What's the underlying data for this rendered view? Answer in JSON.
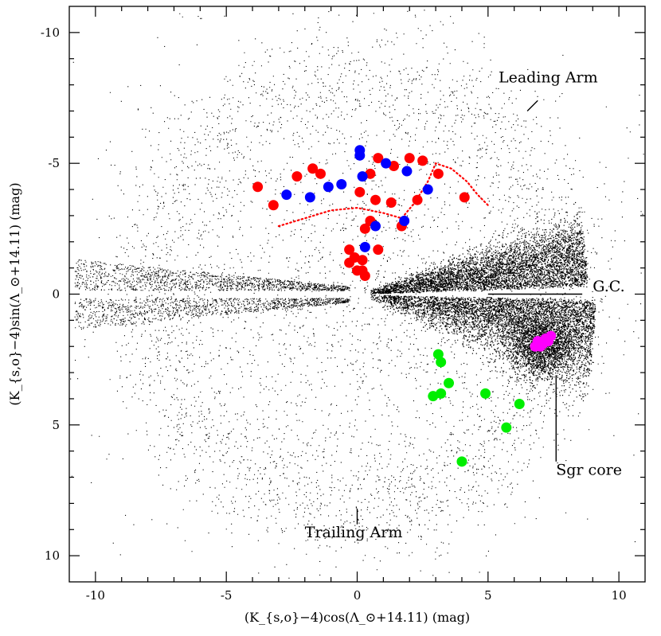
{
  "chart_data": {
    "type": "scatter",
    "title": "",
    "xlabel": "(K_{s,o}−4)cos(Λ_⊙+14.11) (mag)",
    "ylabel": "(K_{s,o}−4)sin(Λ_⊙+14.11) (mag)",
    "xlim": [
      -11,
      11
    ],
    "ylim": [
      11,
      -11
    ],
    "y_axis_inverted": true,
    "x_ticks": [
      -10,
      -5,
      0,
      5,
      10
    ],
    "y_ticks": [
      -10,
      -5,
      0,
      5,
      10
    ],
    "grid": false,
    "legend": "none",
    "annotations": [
      {
        "text": "Leading Arm",
        "x": 5.4,
        "y": -8.1
      },
      {
        "text": "G.C.",
        "x": 9.0,
        "y": -0.1
      },
      {
        "text": "Sgr core",
        "x": 7.6,
        "y": 6.9
      },
      {
        "text": "Trailing Arm",
        "x": -2.0,
        "y": 9.3
      }
    ],
    "series": [
      {
        "name": "",
        "color": "#ff0000",
        "marker": "filled-circle",
        "points": [
          [
            -3.8,
            -4.1
          ],
          [
            -3.2,
            -3.4
          ],
          [
            -2.3,
            -4.5
          ],
          [
            -1.7,
            -4.8
          ],
          [
            -1.4,
            -4.6
          ],
          [
            0.1,
            -3.9
          ],
          [
            0.5,
            -4.6
          ],
          [
            0.8,
            -5.2
          ],
          [
            1.4,
            -4.9
          ],
          [
            2.0,
            -5.2
          ],
          [
            2.5,
            -5.1
          ],
          [
            3.1,
            -4.6
          ],
          [
            4.1,
            -3.7
          ],
          [
            2.3,
            -3.6
          ],
          [
            0.7,
            -3.6
          ],
          [
            1.3,
            -3.5
          ],
          [
            0.5,
            -2.8
          ],
          [
            0.3,
            -2.5
          ],
          [
            1.7,
            -2.6
          ],
          [
            0.8,
            -1.7
          ],
          [
            -0.3,
            -1.7
          ],
          [
            -0.1,
            -1.4
          ],
          [
            0.2,
            -1.3
          ],
          [
            -0.3,
            -1.2
          ],
          [
            0.2,
            -0.9
          ],
          [
            0.3,
            -0.7
          ],
          [
            0.0,
            -0.9
          ]
        ]
      },
      {
        "name": "",
        "color": "#0000ff",
        "marker": "filled-circle",
        "points": [
          [
            -2.7,
            -3.8
          ],
          [
            -1.8,
            -3.7
          ],
          [
            -1.1,
            -4.1
          ],
          [
            -0.6,
            -4.2
          ],
          [
            0.1,
            -5.5
          ],
          [
            0.1,
            -5.3
          ],
          [
            0.2,
            -4.5
          ],
          [
            1.1,
            -5.0
          ],
          [
            1.9,
            -4.7
          ],
          [
            2.7,
            -4.0
          ],
          [
            1.8,
            -2.8
          ],
          [
            0.7,
            -2.6
          ],
          [
            0.3,
            -1.8
          ]
        ]
      },
      {
        "name": "",
        "color": "#00ee00",
        "marker": "filled-circle",
        "points": [
          [
            3.1,
            2.3
          ],
          [
            3.2,
            2.6
          ],
          [
            3.5,
            3.4
          ],
          [
            3.2,
            3.8
          ],
          [
            2.9,
            3.9
          ],
          [
            4.9,
            3.8
          ],
          [
            6.2,
            4.2
          ],
          [
            5.7,
            5.1
          ],
          [
            4.0,
            6.4
          ]
        ]
      },
      {
        "name": "",
        "color": "#ff00ff",
        "marker": "filled-circle",
        "points": [
          [
            6.9,
            1.8
          ],
          [
            7.0,
            2.0
          ],
          [
            7.2,
            1.7
          ],
          [
            7.4,
            1.6
          ],
          [
            6.8,
            2.0
          ],
          [
            7.1,
            1.9
          ],
          [
            7.3,
            1.8
          ],
          [
            6.9,
            1.9
          ]
        ]
      }
    ],
    "model_curves": [
      {
        "name": "",
        "style": "dotted",
        "color": "#ff0000",
        "points": [
          [
            -3.0,
            -2.6
          ],
          [
            -2.0,
            -2.9
          ],
          [
            -1.0,
            -3.2
          ],
          [
            0.0,
            -3.3
          ],
          [
            1.0,
            -3.1
          ],
          [
            1.7,
            -2.9
          ],
          [
            2.2,
            -3.5
          ],
          [
            2.7,
            -4.3
          ],
          [
            3.0,
            -5.0
          ],
          [
            3.6,
            -4.8
          ],
          [
            4.2,
            -4.3
          ],
          [
            4.6,
            -3.8
          ],
          [
            5.0,
            -3.4
          ]
        ]
      }
    ]
  }
}
